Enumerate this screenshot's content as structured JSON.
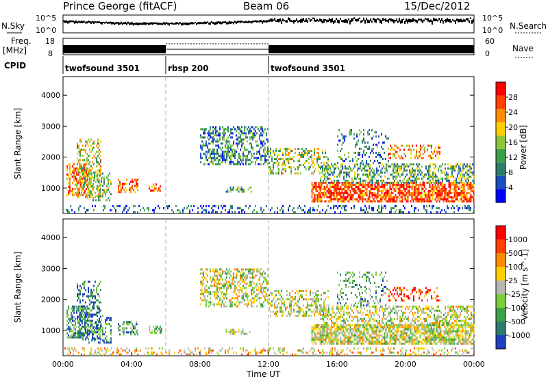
{
  "header": {
    "station": "Prince George (fitACF)",
    "beam": "Beam 06",
    "date": "15/Dec/2012"
  },
  "noise_panel": {
    "left_label": "N.Sky",
    "right_label": "N.Search",
    "left_ticks": [
      "10^5",
      "10^0"
    ],
    "right_ticks": [
      "10^5",
      "10^0"
    ]
  },
  "freq_panel": {
    "left_label": "Freq.",
    "left_unit": "[MHz]",
    "right_label": "Nave",
    "left_ticks": [
      "18",
      "8"
    ],
    "right_ticks": [
      "60",
      "0"
    ]
  },
  "cpid": {
    "label": "CPID",
    "segments": [
      {
        "name": "twofsound 3501",
        "start_hour": 0,
        "end_hour": 6
      },
      {
        "name": "rbsp 200",
        "start_hour": 6,
        "end_hour": 12
      },
      {
        "name": "twofsound 3501",
        "start_hour": 12,
        "end_hour": 24
      }
    ]
  },
  "chart_data": [
    {
      "type": "heatmap",
      "title": "Power",
      "ylabel": "Slant Range [km]",
      "colorbar_label": "Power [dB]",
      "colorbar_ticks": [
        "28",
        "24",
        "20",
        "16",
        "12",
        "8",
        "4"
      ],
      "colors": [
        "#0000ff",
        "#1a4fc0",
        "#2e7d6b",
        "#3aa04a",
        "#8cc63f",
        "#ffd000",
        "#ff8c00",
        "#ff4000",
        "#ff0000"
      ],
      "ylim": [
        180,
        4600
      ],
      "yticks": [
        1000,
        2000,
        3000,
        4000
      ],
      "x_range_hours": [
        0,
        24
      ]
    },
    {
      "type": "heatmap",
      "title": "Velocity",
      "ylabel": "Slant Range [km]",
      "colorbar_label": "Velocity [m s^-1]",
      "colorbar_ticks": [
        "1000",
        "500",
        "100",
        "25",
        "-25",
        "-100",
        "-500",
        "-1000"
      ],
      "colors": [
        "#2040c0",
        "#2e7d6b",
        "#3fa04a",
        "#7ccf3a",
        "#b8b8b0",
        "#ffd000",
        "#ff8c00",
        "#ff4000",
        "#ff0000"
      ],
      "ylim": [
        180,
        4600
      ],
      "yticks": [
        1000,
        2000,
        3000,
        4000
      ],
      "x_range_hours": [
        0,
        24
      ]
    }
  ],
  "x_axis": {
    "label": "Time UT",
    "ticks": [
      "00:00",
      "04:00",
      "08:00",
      "12:00",
      "16:00",
      "20:00",
      "00:00"
    ]
  }
}
